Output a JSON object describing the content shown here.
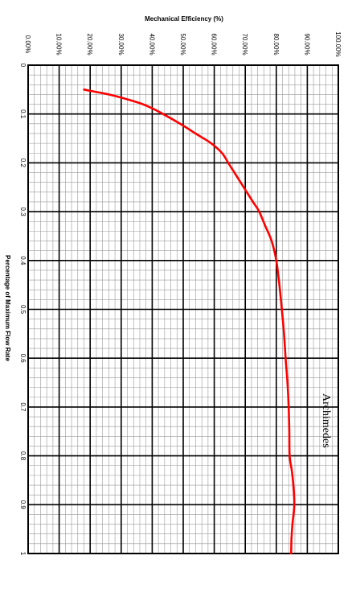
{
  "chart_data": {
    "type": "line",
    "title": "",
    "xlabel": "Percentage of Maximum Flow Rate",
    "ylabel": "Mechanical Efficiency (%)",
    "annotation": "Archimedes",
    "xlim": [
      0,
      1
    ],
    "ylim": [
      0,
      100
    ],
    "x_ticks": [
      "0",
      "0.1",
      "0.2",
      "0.3",
      "0.4",
      "0.5",
      "0.6",
      "0.7",
      "0.8",
      "0.9",
      "1"
    ],
    "y_ticks": [
      "0.00%",
      "10.00%",
      "20.00%",
      "30.00%",
      "40.00%",
      "50.00%",
      "60.00%",
      "70.00%",
      "80.00%",
      "90.00%",
      "100.00%"
    ],
    "grid": true,
    "orientation": "rotated-90-clockwise",
    "series": [
      {
        "color": "#ff0000",
        "x": [
          0.05,
          0.06,
          0.07,
          0.08,
          0.09,
          0.1,
          0.12,
          0.14,
          0.16,
          0.18,
          0.2,
          0.22,
          0.25,
          0.28,
          0.3,
          0.33,
          0.36,
          0.4,
          0.45,
          0.5,
          0.55,
          0.6,
          0.65,
          0.7,
          0.75,
          0.8,
          0.83,
          0.86,
          0.9,
          0.94,
          0.97,
          1.0
        ],
        "y": [
          18.0,
          26.0,
          32.0,
          37.0,
          40.5,
          43.5,
          49.0,
          54.0,
          59.0,
          62.5,
          64.5,
          66.5,
          69.5,
          72.5,
          74.5,
          76.5,
          78.5,
          80.0,
          81.0,
          81.8,
          82.5,
          83.0,
          83.6,
          84.0,
          84.2,
          84.3,
          85.0,
          85.5,
          85.8,
          85.2,
          84.9,
          84.8
        ]
      }
    ]
  }
}
